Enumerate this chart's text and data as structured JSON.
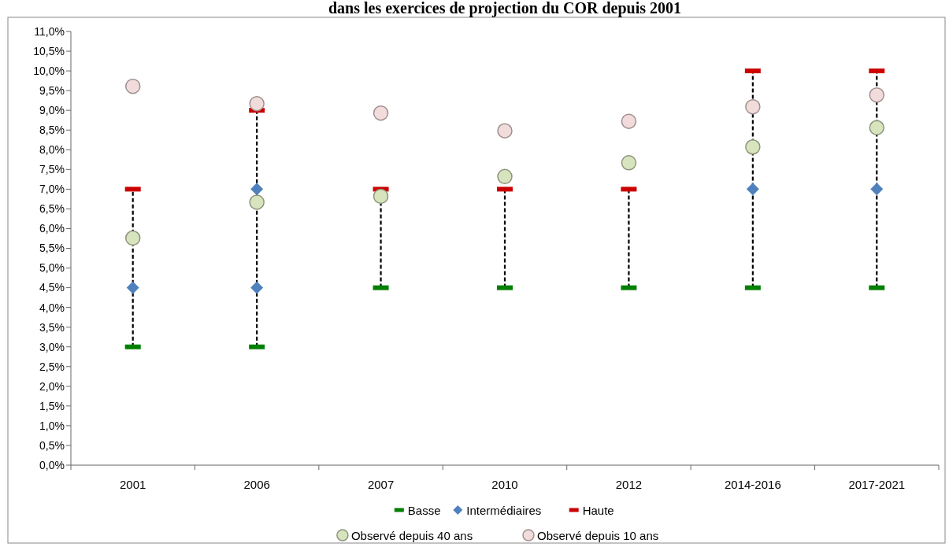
{
  "chart_data": {
    "type": "scatter",
    "title": "dans les exercices de projection du COR depuis 2001",
    "categories": [
      "2001",
      "2006",
      "2007",
      "2010",
      "2012",
      "2014-2016",
      "2017-2021"
    ],
    "ylim": [
      0,
      11
    ],
    "yticks": [
      {
        "value": 0,
        "label": "0,0%"
      },
      {
        "value": 0.5,
        "label": "0,5%"
      },
      {
        "value": 1,
        "label": "1,0%"
      },
      {
        "value": 1.5,
        "label": "1,5%"
      },
      {
        "value": 2,
        "label": "2,0%"
      },
      {
        "value": 2.5,
        "label": "2,5%"
      },
      {
        "value": 3,
        "label": "3,0%"
      },
      {
        "value": 3.5,
        "label": "3,5%"
      },
      {
        "value": 4,
        "label": "4,0%"
      },
      {
        "value": 4.5,
        "label": "4,5%"
      },
      {
        "value": 5,
        "label": "5,0%"
      },
      {
        "value": 5.5,
        "label": "5,5%"
      },
      {
        "value": 6,
        "label": "6,0%"
      },
      {
        "value": 6.5,
        "label": "6,5%"
      },
      {
        "value": 7,
        "label": "7,0%"
      },
      {
        "value": 7.5,
        "label": "7,5%"
      },
      {
        "value": 8,
        "label": "8,0%"
      },
      {
        "value": 8.5,
        "label": "8,5%"
      },
      {
        "value": 9,
        "label": "9,0%"
      },
      {
        "value": 9.5,
        "label": "9,5%"
      },
      {
        "value": 10,
        "label": "10,0%"
      },
      {
        "value": 10.5,
        "label": "10,5%"
      },
      {
        "value": 11,
        "label": "11,0%"
      }
    ],
    "grid": false,
    "legend": "bottom",
    "series": [
      {
        "name": "Basse",
        "color": "#008000",
        "values": [
          3,
          3,
          4.5,
          4.5,
          4.5,
          4.5,
          4.5
        ]
      },
      {
        "name": "Intermédiaires",
        "color": "#4f81bd",
        "marker": "diamond",
        "values": [
          4.5,
          7,
          null,
          null,
          null,
          7,
          7
        ]
      },
      {
        "name": "Haute",
        "color": "#cc0000",
        "values": [
          7,
          9,
          7,
          7,
          7,
          10,
          10
        ]
      },
      {
        "color": "#4f81bd",
        "marker": "diamond",
        "values": [
          null,
          4.5,
          null,
          null,
          null,
          null,
          null
        ]
      },
      {
        "name": "Observé depuis 40 ans",
        "color": "#d7e4bd",
        "marker": "circle",
        "values": [
          5.76,
          6.67,
          6.82,
          7.32,
          7.67,
          8.07,
          8.56
        ]
      },
      {
        "name": "Observé depuis 10 ans",
        "color": "#f2dcdb",
        "marker": "circle",
        "values": [
          9.61,
          9.17,
          8.93,
          8.48,
          8.72,
          9.09,
          9.39
        ]
      }
    ]
  }
}
